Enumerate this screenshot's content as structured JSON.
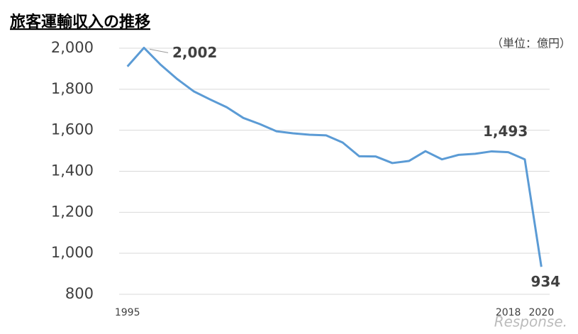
{
  "chart_data": {
    "type": "line",
    "title": "旅客運輸収入の推移",
    "unit_label": "（単位：億円）",
    "watermark": "Response.",
    "x": [
      1995,
      1996,
      1997,
      1998,
      1999,
      2000,
      2001,
      2002,
      2003,
      2004,
      2005,
      2006,
      2007,
      2008,
      2009,
      2010,
      2011,
      2012,
      2013,
      2014,
      2015,
      2016,
      2017,
      2018,
      2019,
      2020
    ],
    "series": [
      {
        "name": "旅客運輸収入",
        "color": "#5b9bd5",
        "values": [
          1911,
          2002,
          1920,
          1850,
          1790,
          1750,
          1712,
          1660,
          1630,
          1595,
          1585,
          1578,
          1575,
          1540,
          1473,
          1472,
          1440,
          1450,
          1498,
          1458,
          1480,
          1485,
          1497,
          1493,
          1458,
          934
        ],
        "value_labels": [
          null,
          "2,002",
          null,
          null,
          null,
          null,
          null,
          null,
          null,
          null,
          null,
          null,
          null,
          null,
          null,
          null,
          null,
          null,
          null,
          null,
          null,
          null,
          null,
          "1,493",
          null,
          "934"
        ]
      }
    ],
    "xlim": [
      1994.5,
      2020.5
    ],
    "xticks": [
      1995,
      2018,
      2020
    ],
    "ylim": [
      800,
      2000
    ],
    "yticks": [
      800,
      {
        "value": 1000,
        "label": "1,000"
      },
      {
        "value": 1200,
        "label": "1,200"
      },
      {
        "value": 1400,
        "label": "1,400"
      },
      {
        "value": 1600,
        "label": "1,600"
      },
      {
        "value": 1800,
        "label": "1,800"
      },
      {
        "value": 2000,
        "label": "2,000"
      }
    ],
    "grid": true
  }
}
